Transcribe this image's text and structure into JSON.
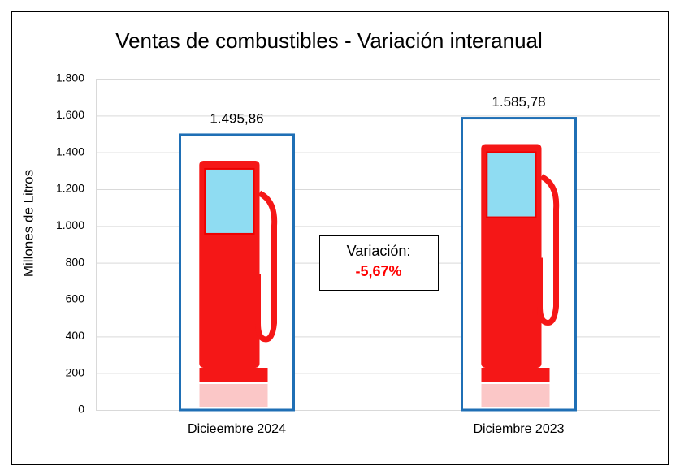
{
  "chart_data": {
    "type": "bar",
    "title": "Ventas de combustibles - Variación interanual",
    "y_label": "Millones de Litros",
    "categories": [
      "Dicieembre 2024",
      "Diciembre 2023"
    ],
    "values": [
      1495.86,
      1585.78
    ],
    "value_labels": [
      "1.495,86",
      "1.585,78"
    ],
    "color": "#1f6fb5",
    "ylim": [
      0,
      1800
    ],
    "yticks": [
      0,
      {
        "value": 200,
        "label": "200"
      },
      {
        "value": 400,
        "label": "400"
      },
      {
        "value": 600,
        "label": "600"
      },
      {
        "value": 800,
        "label": "800"
      },
      {
        "value": 1000,
        "label": "1.000"
      },
      {
        "value": 1200,
        "label": "1.200"
      },
      {
        "value": 1400,
        "label": "1.400"
      },
      {
        "value": 1600,
        "label": "1.600"
      },
      {
        "value": 1800,
        "label": "1.800"
      }
    ],
    "grid": true,
    "annotation": {
      "label": "Variación:",
      "value": "-5,67%"
    }
  }
}
